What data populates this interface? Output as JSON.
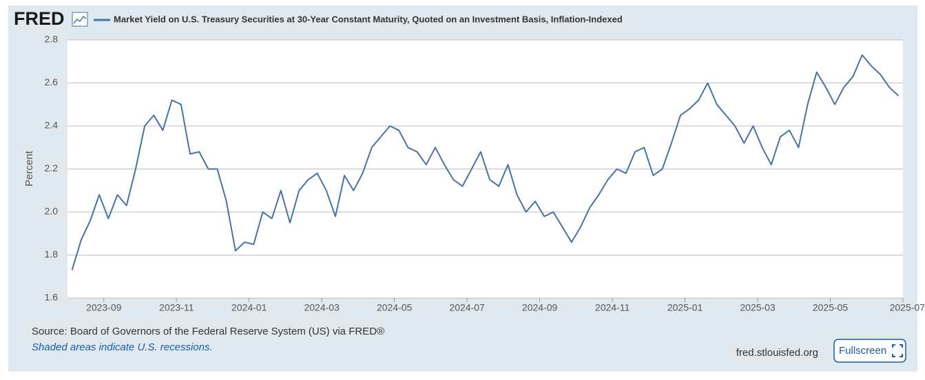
{
  "logo": "FRED",
  "chart_data": {
    "type": "line",
    "title": "Market Yield on U.S. Treasury Securities at 30-Year Constant Maturity, Quoted on an Investment Basis, Inflation-Indexed",
    "y_label": "Percent",
    "color": "#4572a7",
    "grid": true,
    "x": [
      "2023-08",
      "2023-08",
      "2023-08",
      "2023-08",
      "2023-09",
      "2023-09",
      "2023-09",
      "2023-09",
      "2023-10",
      "2023-10",
      "2023-10",
      "2023-10",
      "2023-11",
      "2023-11",
      "2023-11",
      "2023-11",
      "2023-12",
      "2023-12",
      "2023-12",
      "2023-12",
      "2024-01",
      "2024-01",
      "2024-01",
      "2024-01",
      "2024-02",
      "2024-02",
      "2024-02",
      "2024-02",
      "2024-03",
      "2024-03",
      "2024-03",
      "2024-03",
      "2024-04",
      "2024-04",
      "2024-04",
      "2024-04",
      "2024-05",
      "2024-05",
      "2024-05",
      "2024-05",
      "2024-06",
      "2024-06",
      "2024-06",
      "2024-06",
      "2024-07",
      "2024-07",
      "2024-07",
      "2024-07",
      "2024-08",
      "2024-08",
      "2024-08",
      "2024-08",
      "2024-09",
      "2024-09",
      "2024-09",
      "2024-09",
      "2024-10",
      "2024-10",
      "2024-10",
      "2024-10",
      "2024-11",
      "2024-11",
      "2024-11",
      "2024-11",
      "2024-12",
      "2024-12",
      "2024-12",
      "2024-12",
      "2025-01",
      "2025-01",
      "2025-01",
      "2025-01",
      "2025-02",
      "2025-02",
      "2025-02",
      "2025-02",
      "2025-03",
      "2025-03",
      "2025-03",
      "2025-03",
      "2025-04",
      "2025-04",
      "2025-04",
      "2025-04",
      "2025-05",
      "2025-05",
      "2025-05",
      "2025-05",
      "2025-06",
      "2025-06",
      "2025-06",
      "2025-06"
    ],
    "values": [
      1.73,
      1.87,
      1.96,
      2.08,
      1.97,
      2.08,
      2.03,
      2.2,
      2.4,
      2.45,
      2.38,
      2.52,
      2.5,
      2.27,
      2.28,
      2.2,
      2.2,
      2.05,
      1.82,
      1.86,
      1.85,
      2.0,
      1.97,
      2.1,
      1.95,
      2.1,
      2.15,
      2.18,
      2.1,
      1.98,
      2.17,
      2.1,
      2.18,
      2.3,
      2.35,
      2.4,
      2.38,
      2.3,
      2.28,
      2.22,
      2.3,
      2.22,
      2.15,
      2.12,
      2.2,
      2.28,
      2.15,
      2.12,
      2.22,
      2.08,
      2.0,
      2.05,
      1.98,
      2.0,
      1.93,
      1.86,
      1.93,
      2.02,
      2.08,
      2.15,
      2.2,
      2.18,
      2.28,
      2.3,
      2.17,
      2.2,
      2.32,
      2.45,
      2.48,
      2.52,
      2.6,
      2.5,
      2.45,
      2.4,
      2.32,
      2.4,
      2.3,
      2.22,
      2.35,
      2.38,
      2.3,
      2.5,
      2.65,
      2.58,
      2.5,
      2.58,
      2.63,
      2.73,
      2.68,
      2.64,
      2.58,
      2.54
    ],
    "xlim": [
      "2023-08",
      "2025-07"
    ],
    "xticks": [
      "2023-09",
      "2023-11",
      "2024-01",
      "2024-03",
      "2024-05",
      "2024-07",
      "2024-09",
      "2024-11",
      "2025-01",
      "2025-03",
      "2025-05",
      "2025-07"
    ],
    "ylim": [
      1.6,
      2.8
    ],
    "yticks": [
      1.6,
      1.8,
      {
        "value": 2,
        "label": "2.0"
      },
      2.2,
      2.4,
      2.6,
      2.8
    ]
  },
  "source": "Source: Board of Governors of the Federal Reserve System (US) via FRED®",
  "note": "Shaded areas indicate U.S. recessions.",
  "site": "fred.stlouisfed.org",
  "button": "Fullscreen"
}
